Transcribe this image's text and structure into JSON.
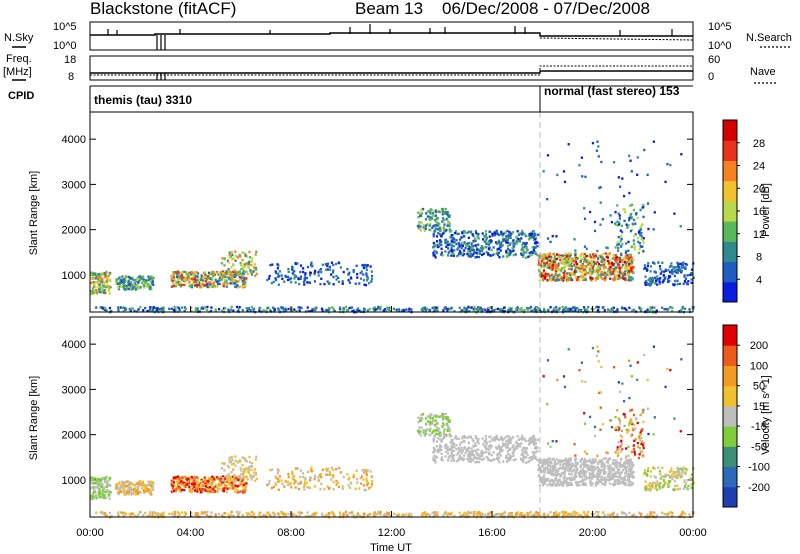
{
  "header": {
    "station": "Blackstone (fitACF)",
    "beam": "Beam 13",
    "date_range": "06/Dec/2008 - 07/Dec/2008"
  },
  "summary": {
    "nsky_label": "N.Sky",
    "nsky_ticks": [
      "10^5",
      "10^0"
    ],
    "freq_label": "Freq.",
    "freq_unit": "[MHz]",
    "freq_ticks": [
      "18",
      "8"
    ],
    "nsearch_label": "N.Search",
    "nsearch_ticks": [
      "10^5",
      "10^0"
    ],
    "nave_label": "Nave",
    "nave_ticks": [
      "60",
      "0"
    ],
    "cpid_label": "CPID",
    "cpid_modes": [
      {
        "name": "themis (tau) 3310",
        "start_hour": 0
      },
      {
        "name": "normal (fast stereo) 153",
        "start_hour": 18
      }
    ]
  },
  "chart_data": [
    {
      "type": "heatmap",
      "name": "power",
      "ylabel": "Slant Range [km]",
      "yticks": [
        1000,
        2000,
        3000,
        4000
      ],
      "ylim": [
        180,
        4600
      ],
      "colorbar": {
        "label": "Power [dB]",
        "ticks": [
          "28",
          "24",
          "20",
          "16",
          "12",
          "8",
          "4"
        ],
        "colors": [
          "#0b1de0",
          "#1f5cc4",
          "#2f8a8f",
          "#59b85a",
          "#b9d94a",
          "#f2c12e",
          "#f5821f",
          "#e8321c",
          "#d40000"
        ]
      }
    },
    {
      "type": "heatmap",
      "name": "velocity",
      "xlabel": "Time UT",
      "xticks": [
        "00:00",
        "04:00",
        "08:00",
        "12:00",
        "16:00",
        "20:00",
        "00:00"
      ],
      "xlim": [
        0,
        24
      ],
      "ylabel": "Slant Range [km]",
      "yticks": [
        1000,
        2000,
        3000,
        4000
      ],
      "ylim": [
        180,
        4600
      ],
      "colorbar": {
        "label": "Velocity [m s^-1]",
        "ticks": [
          "200",
          "100",
          "50",
          "15",
          "-15",
          "-50",
          "-100",
          "-200"
        ],
        "colors": [
          "#1f3fb0",
          "#2a6ab8",
          "#3c8f76",
          "#7fcc3c",
          "#bebebe",
          "#f0c030",
          "#f29a24",
          "#ec5a1c",
          "#e00000"
        ]
      }
    }
  ]
}
